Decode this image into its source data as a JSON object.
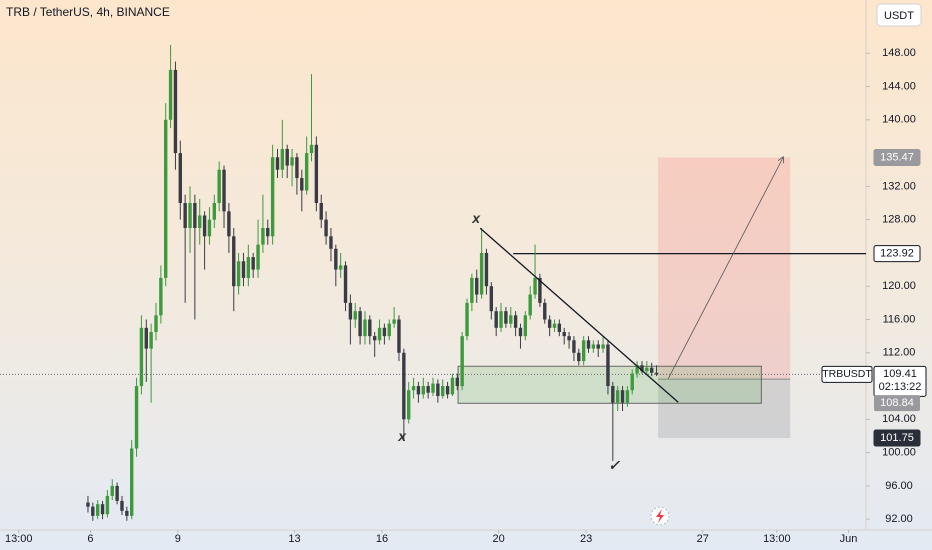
{
  "chart_data": {
    "type": "candlestick",
    "title": "TRB / TetherUS, 4h, BINANCE",
    "currency": "USDT",
    "symbol": "TRBUSDT",
    "countdown": "02:13:22",
    "up_color": "#3d9a3d",
    "down_color": "#3b3b45",
    "xlim": [
      2.9,
      32.6
    ],
    "ylim": [
      90.7,
      154.4
    ],
    "xticks": [
      {
        "value": 3.542,
        "label": "13:00"
      },
      6,
      9,
      13,
      16,
      20,
      23,
      27,
      {
        "value": 29.542,
        "label": "13:00"
      },
      {
        "value": 32,
        "label": "Jun"
      }
    ],
    "yticks": [
      {
        "value": 92,
        "label": "92.00"
      },
      {
        "value": 96,
        "label": "96.00"
      },
      {
        "value": 100,
        "label": "100.00"
      },
      {
        "value": 104,
        "label": "104.00"
      },
      {
        "value": 112,
        "label": "112.00"
      },
      {
        "value": 116,
        "label": "116.00"
      },
      {
        "value": 120,
        "label": "120.00"
      },
      {
        "value": 128,
        "label": "128.00"
      },
      {
        "value": 132,
        "label": "132.00"
      },
      {
        "value": 140,
        "label": "140.00"
      },
      {
        "value": 144,
        "label": "144.00"
      },
      {
        "value": 148,
        "label": "148.00"
      }
    ],
    "x": [
      5.917,
      6.083,
      6.25,
      6.417,
      6.583,
      6.75,
      6.917,
      7.083,
      7.25,
      7.417,
      7.583,
      7.75,
      7.917,
      8.083,
      8.25,
      8.417,
      8.583,
      8.75,
      8.917,
      9.083,
      9.25,
      9.417,
      9.583,
      9.75,
      9.917,
      10.083,
      10.25,
      10.417,
      10.583,
      10.75,
      10.917,
      11.083,
      11.25,
      11.417,
      11.583,
      11.75,
      11.917,
      12.083,
      12.25,
      12.417,
      12.583,
      12.75,
      12.917,
      13.083,
      13.25,
      13.417,
      13.583,
      13.75,
      13.917,
      14.083,
      14.25,
      14.417,
      14.583,
      14.75,
      14.917,
      15.083,
      15.25,
      15.417,
      15.583,
      15.75,
      15.917,
      16.083,
      16.25,
      16.417,
      16.583,
      16.75,
      16.917,
      17.083,
      17.25,
      17.417,
      17.583,
      17.75,
      17.917,
      18.083,
      18.25,
      18.417,
      18.583,
      18.75,
      18.917,
      19.083,
      19.25,
      19.417,
      19.583,
      19.75,
      19.917,
      20.083,
      20.25,
      20.417,
      20.583,
      20.75,
      20.917,
      21.083,
      21.25,
      21.417,
      21.583,
      21.75,
      21.917,
      22.083,
      22.25,
      22.417,
      22.583,
      22.75,
      22.917,
      23.083,
      23.25,
      23.417,
      23.583,
      23.75,
      23.917,
      24.083,
      24.25,
      24.417,
      24.583,
      24.75,
      24.917,
      25.083,
      25.25,
      25.417
    ],
    "ohlc": [
      [
        94,
        94.8,
        92.8,
        93.5
      ],
      [
        93.5,
        94,
        91.8,
        92.4
      ],
      [
        92.4,
        94.3,
        92,
        93.8
      ],
      [
        93.8,
        94.2,
        92,
        92.6
      ],
      [
        92.6,
        95.5,
        92.2,
        94.8
      ],
      [
        94.8,
        96.8,
        94.3,
        96
      ],
      [
        96,
        96.4,
        93.8,
        94.2
      ],
      [
        94.2,
        94.8,
        92.5,
        93
      ],
      [
        93,
        93.5,
        91.8,
        92.4
      ],
      [
        92.4,
        101.5,
        92,
        100.5
      ],
      [
        100.5,
        109,
        99.5,
        108
      ],
      [
        108,
        116.5,
        107,
        115
      ],
      [
        115,
        116,
        108.5,
        112.5
      ],
      [
        112.5,
        115.5,
        106,
        114.5
      ],
      [
        114.5,
        118,
        113.5,
        116.5
      ],
      [
        116.5,
        122.5,
        115.5,
        121
      ],
      [
        121,
        142,
        120,
        140
      ],
      [
        140,
        149,
        139,
        146
      ],
      [
        146,
        147,
        134,
        136
      ],
      [
        136,
        137.5,
        128,
        130
      ],
      [
        130,
        131,
        118,
        127
      ],
      [
        127,
        132,
        124,
        130
      ],
      [
        130,
        131,
        116,
        127
      ],
      [
        127,
        130.5,
        125,
        128.5
      ],
      [
        128.5,
        129,
        122,
        126
      ],
      [
        126,
        129.5,
        125,
        128
      ],
      [
        128,
        131,
        127,
        130
      ],
      [
        130,
        135,
        129,
        134
      ],
      [
        134,
        134.5,
        127,
        129
      ],
      [
        129,
        130,
        124,
        126
      ],
      [
        126,
        127,
        117,
        120
      ],
      [
        120,
        124,
        119,
        123
      ],
      [
        123,
        124,
        120,
        121
      ],
      [
        121,
        125,
        120,
        123.5
      ],
      [
        123.5,
        124,
        121,
        122
      ],
      [
        122,
        128,
        121,
        125
      ],
      [
        125,
        131,
        124,
        127
      ],
      [
        127,
        128,
        125,
        126
      ],
      [
        126,
        137,
        125,
        135.5
      ],
      [
        135.5,
        136.5,
        133,
        134
      ],
      [
        134,
        140,
        133,
        136.5
      ],
      [
        136.5,
        137,
        133,
        134.5
      ],
      [
        134.5,
        136.5,
        132,
        135.5
      ],
      [
        135.5,
        136,
        131,
        133
      ],
      [
        133,
        134,
        129,
        131.5
      ],
      [
        131.5,
        138,
        131,
        136
      ],
      [
        136,
        145.5,
        135,
        137
      ],
      [
        137,
        138,
        129,
        130
      ],
      [
        130,
        131,
        127,
        128
      ],
      [
        128,
        129,
        125,
        126
      ],
      [
        126,
        127,
        123,
        124.5
      ],
      [
        124.5,
        125,
        120,
        122
      ],
      [
        122,
        124,
        121,
        122.5
      ],
      [
        122.5,
        123,
        117,
        118
      ],
      [
        118,
        119,
        113,
        116
      ],
      [
        116,
        118,
        115,
        117
      ],
      [
        117,
        117.5,
        113,
        114
      ],
      [
        114,
        117,
        113,
        116
      ],
      [
        116,
        116.5,
        113,
        114
      ],
      [
        114,
        114.5,
        111.5,
        113.5
      ],
      [
        113.5,
        116,
        113,
        115
      ],
      [
        115,
        115.5,
        113,
        114
      ],
      [
        114,
        116,
        113.5,
        115.5
      ],
      [
        115.5,
        117.5,
        115,
        116
      ],
      [
        116,
        116.5,
        111,
        112
      ],
      [
        112,
        112.5,
        101.5,
        104
      ],
      [
        104,
        108.5,
        103.5,
        107.5
      ],
      [
        107.5,
        109,
        106.5,
        108
      ],
      [
        108,
        108.5,
        106,
        107
      ],
      [
        107,
        109,
        106.5,
        108
      ],
      [
        108,
        108.5,
        106.5,
        107.2
      ],
      [
        107.2,
        109,
        106.8,
        108.3
      ],
      [
        108.3,
        108.8,
        106,
        106.8
      ],
      [
        106.8,
        108.8,
        106.5,
        108
      ],
      [
        108,
        108.5,
        106.5,
        107
      ],
      [
        107,
        109.5,
        106.8,
        109
      ],
      [
        109,
        109.5,
        107.5,
        108
      ],
      [
        108,
        114.5,
        107.5,
        114
      ],
      [
        114,
        118.5,
        113.5,
        118
      ],
      [
        118,
        121.5,
        117,
        121
      ],
      [
        121,
        122,
        118,
        119
      ],
      [
        119,
        127,
        118.5,
        124
      ],
      [
        124,
        124.5,
        119,
        120
      ],
      [
        120,
        120.5,
        116,
        117
      ],
      [
        117,
        117.5,
        114,
        115
      ],
      [
        115,
        118,
        114.5,
        117
      ],
      [
        117,
        117.5,
        115,
        115.5
      ],
      [
        115.5,
        117.5,
        115,
        116.5
      ],
      [
        116.5,
        117,
        114,
        115
      ],
      [
        115,
        115.5,
        112.5,
        114
      ],
      [
        114,
        117,
        113.5,
        116.5
      ],
      [
        116.5,
        120,
        116,
        119
      ],
      [
        119,
        125,
        118.5,
        121
      ],
      [
        121,
        121.5,
        117.5,
        118
      ],
      [
        118,
        118.5,
        115.5,
        116
      ],
      [
        116,
        116.5,
        114,
        115
      ],
      [
        115,
        116,
        114.5,
        115.5
      ],
      [
        115.5,
        116,
        114,
        114.5
      ],
      [
        114.5,
        115,
        113,
        114
      ],
      [
        114,
        114.5,
        112.5,
        113.5
      ],
      [
        113.5,
        114,
        111,
        112
      ],
      [
        112,
        112.5,
        110.5,
        111
      ],
      [
        111,
        114,
        110.5,
        113.5
      ],
      [
        113.5,
        114,
        112,
        112.5
      ],
      [
        112.5,
        113.5,
        112,
        113
      ],
      [
        113,
        113.5,
        111.5,
        112.5
      ],
      [
        112.5,
        114,
        112,
        113
      ],
      [
        113,
        113.5,
        107,
        108
      ],
      [
        108,
        108.5,
        99,
        106
      ],
      [
        106,
        108,
        105,
        107.5
      ],
      [
        107.5,
        108,
        105,
        106
      ],
      [
        106,
        108,
        105.5,
        107.5
      ],
      [
        107.5,
        110,
        107,
        109.5
      ],
      [
        109.5,
        111,
        109,
        110.5
      ],
      [
        110.5,
        111,
        109.5,
        109.8
      ],
      [
        109.8,
        111,
        109.5,
        110.2
      ],
      [
        110.2,
        110.8,
        109.2,
        109.6
      ],
      [
        109.6,
        110.5,
        109.2,
        109.41
      ]
    ],
    "last_price": 109.41,
    "hline": {
      "value": 123.92,
      "start": 20.5
    },
    "trendline": {
      "x": [
        19.37,
        26.16
      ],
      "y": [
        126.97,
        106.05
      ]
    },
    "arrow": {
      "x": [
        25.82,
        29.76
      ],
      "y": [
        108.9,
        135.5
      ]
    },
    "zone": {
      "x": [
        18.61,
        29.01
      ],
      "y": [
        105.93,
        110.38
      ]
    },
    "position": {
      "x": [
        25.47,
        30.0
      ],
      "entry": 108.84,
      "target": 135.47,
      "stop": 101.75
    },
    "annotations": [
      {
        "text": "x",
        "x": 19.23,
        "y": 128.05
      },
      {
        "text": "x",
        "x": 16.69,
        "y": 101.85
      },
      {
        "text": "✓",
        "x": 23.96,
        "y": 98.36
      }
    ]
  }
}
